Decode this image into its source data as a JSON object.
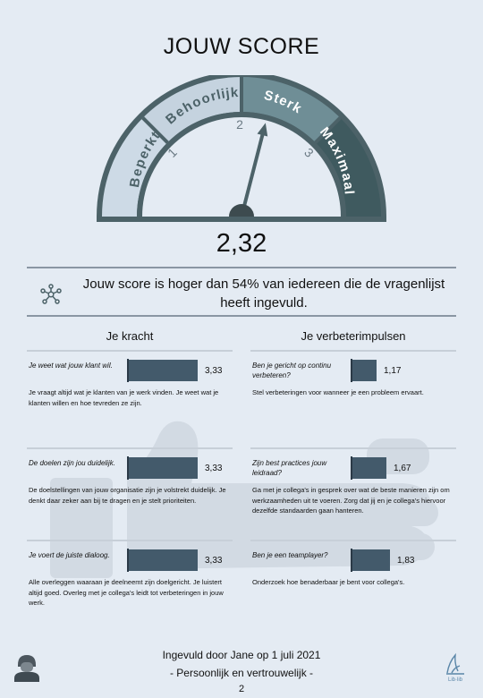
{
  "page": {
    "title": "JOUW SCORE",
    "page_number": "2"
  },
  "gauge": {
    "segments": [
      "Beperkt",
      "Behoorlijk",
      "Sterk",
      "Maximaal"
    ],
    "ticks": [
      "1",
      "2",
      "3"
    ],
    "score_text": "2,32",
    "needle_value": 2.32,
    "colors": {
      "beperkt": "#cddae6",
      "behoorlijk": "#c5d3df",
      "sterk": "#6f8e96",
      "maximaal": "#3f5a5f",
      "frame": "#4c6268"
    }
  },
  "comparison": {
    "text": "Jouw score is hoger dan 54% van iedereen die de vragenlijst heeft ingevuld.",
    "icon": "network-icon"
  },
  "columns": {
    "left_heading": "Je kracht",
    "right_heading": "Je verbeterimpulsen"
  },
  "strengths": [
    {
      "question": "Je weet wat jouw klant wil.",
      "score": "3,33",
      "value": 3.33,
      "description": "Je vraagt altijd wat je klanten van je werk vinden. Je weet wat je klanten willen en hoe tevreden ze zijn."
    },
    {
      "question": "De doelen zijn jou duidelijk.",
      "score": "3,33",
      "value": 3.33,
      "description": "De doelstellingen van jouw organisatie zijn je volstrekt duidelijk. Je denkt daar zeker aan bij te dragen en je stelt prioriteiten."
    },
    {
      "question": "Je voert de juiste dialoog.",
      "score": "3,33",
      "value": 3.33,
      "description": "Alle overleggen waaraan je deelneemt zijn doelgericht. Je luistert altijd goed. Overleg met je collega's leidt tot verbeteringen in jouw werk."
    }
  ],
  "improvements": [
    {
      "question": "Ben je gericht op continu verbeteren?",
      "score": "1,17",
      "value": 1.17,
      "description": "Stel verbeteringen voor wanneer je een probleem ervaart."
    },
    {
      "question": "Zijn best practices jouw leidraad?",
      "score": "1,67",
      "value": 1.67,
      "description": "Ga met je collega's in gesprek over wat de beste manieren zijn om werkzaamheden uit te voeren. Zorg dat jij en je collega's hiervoor dezelfde standaarden gaan hanteren."
    },
    {
      "question": "Ben je een teamplayer?",
      "score": "1,83",
      "value": 1.83,
      "description": "Onderzoek hoe benaderbaar je bent voor collega's."
    }
  ],
  "footer": {
    "filled_by": "Ingevuld door Jane op 1 juli 2021",
    "confidential": "- Persoonlijk en vertrouwelijk -"
  },
  "icons": {
    "avatar": "user-avatar-icon",
    "logo": "brand-logo-icon"
  }
}
